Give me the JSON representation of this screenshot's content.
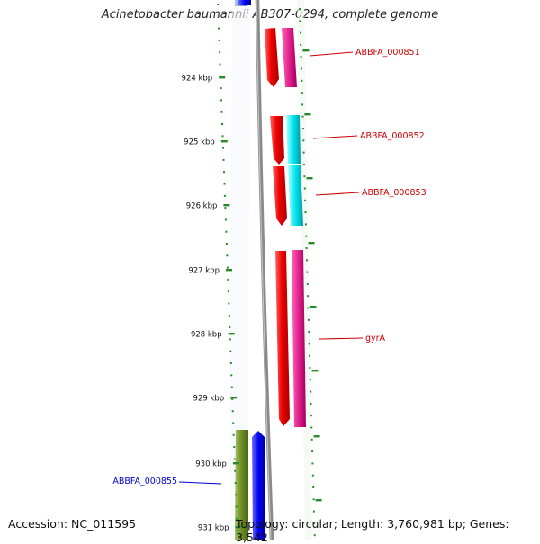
{
  "title": "Acinetobacter baumannii AB307-0294, complete genome",
  "footer": {
    "accession": "Accession: NC_011595",
    "topology": "Topology: circular; Length: 3,760,981 bp; Genes: 3,542"
  },
  "ticks": [
    "924 kbp",
    "925 kbp",
    "926 kbp",
    "927 kbp",
    "928 kbp",
    "929 kbp",
    "930 kbp",
    "931 kbp"
  ],
  "genes": [
    {
      "label": "ABBFA_000851",
      "color": "#cc0000"
    },
    {
      "label": "ABBFA_000852",
      "color": "#cc0000"
    },
    {
      "label": "ABBFA_000853",
      "color": "#cc0000"
    },
    {
      "label": "gyrA",
      "color": "#cc0000"
    },
    {
      "label": "ABBFA_000855",
      "color": "#0000cc"
    }
  ],
  "colors": {
    "forward_cds": "#ee0000",
    "cog_magenta": "#e0208a",
    "cog_cyan": "#00e5ee",
    "reverse_cds": "#0000ee",
    "cog_olive": "#6b8e23",
    "backbone": "#888888",
    "tick": "#2a8a2a"
  }
}
